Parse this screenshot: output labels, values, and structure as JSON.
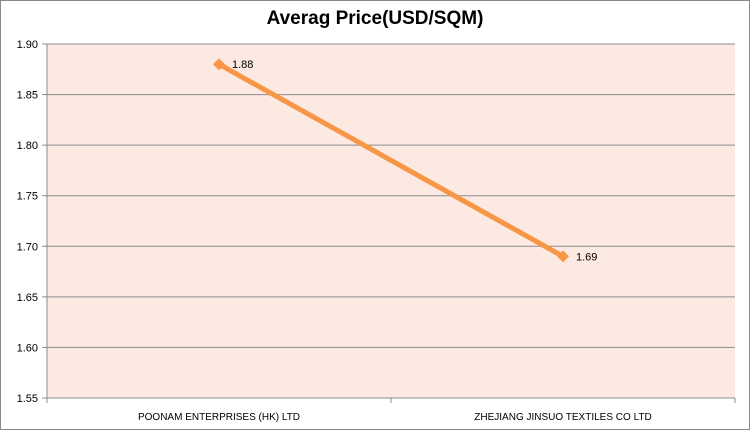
{
  "chart_data": {
    "type": "line",
    "title": "Averag Price(USD/SQM)",
    "categories": [
      "POONAM ENTERPRISES  (HK) LTD",
      "ZHEJIANG JINSUO  TEXTILES  CO LTD"
    ],
    "values": [
      1.88,
      1.69
    ],
    "data_labels": [
      "1.88",
      "1.69"
    ],
    "ylim": [
      1.55,
      1.9
    ],
    "yticks": [
      "1.90",
      "1.85",
      "1.80",
      "1.75",
      "1.70",
      "1.65",
      "1.60",
      "1.55"
    ],
    "grid": true,
    "legend": "none",
    "xlabel": "",
    "ylabel": ""
  },
  "colors": {
    "line": "#f79646",
    "plot_background": "#fbe9e2",
    "gridline": "#8c8c8c"
  }
}
